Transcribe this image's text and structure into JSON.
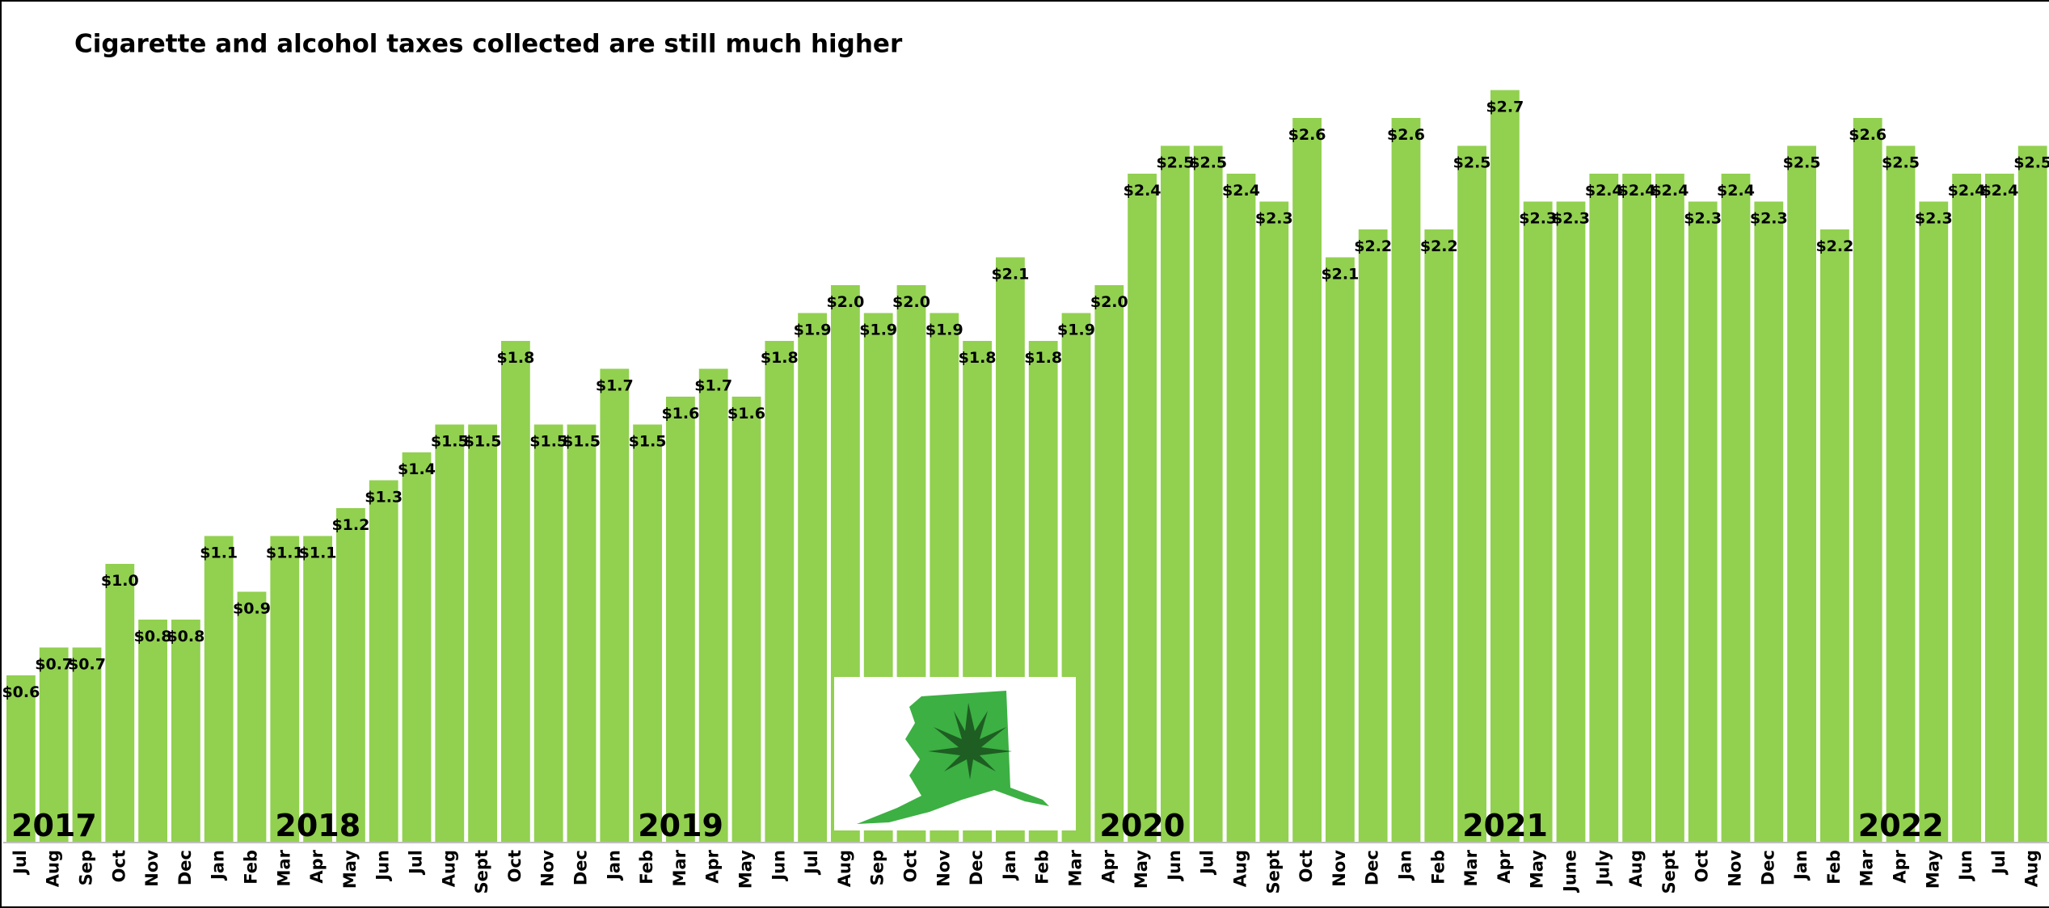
{
  "chart_data": {
    "type": "bar",
    "title": "Cigarette and alcohol taxes collected are still much higher",
    "color": "#92d050",
    "ylim": [
      0,
      3
    ],
    "categories": [
      "Jul",
      "Aug",
      "Sep",
      "Oct",
      "Nov",
      "Dec",
      "Jan",
      "Feb",
      "Mar",
      "Apr",
      "May",
      "Jun",
      "Jul",
      "Aug",
      "Sept",
      "Oct",
      "Nov",
      "Dec",
      "Jan",
      "Feb",
      "Mar",
      "Apr",
      "May",
      "Jun",
      "Jul",
      "Aug",
      "Sep",
      "Oct",
      "Nov",
      "Dec",
      "Jan",
      "Feb",
      "Mar",
      "Apr",
      "May",
      "Jun",
      "Jul",
      "Aug",
      "Sept",
      "Oct",
      "Nov",
      "Dec",
      "Jan",
      "Feb",
      "Mar",
      "Apr",
      "May",
      "June",
      "July",
      "Aug",
      "Sept",
      "Oct",
      "Nov",
      "Dec",
      "Jan",
      "Feb",
      "Mar",
      "Apr",
      "May",
      "Jun",
      "Jul",
      "Aug"
    ],
    "values": [
      0.6,
      0.7,
      0.7,
      1.0,
      0.8,
      0.8,
      1.1,
      0.9,
      1.1,
      1.1,
      1.2,
      1.3,
      1.4,
      1.5,
      1.5,
      1.8,
      1.5,
      1.5,
      1.7,
      1.5,
      1.6,
      1.7,
      1.6,
      1.8,
      1.9,
      2.0,
      1.9,
      2.0,
      1.9,
      1.8,
      2.1,
      1.8,
      1.9,
      2.0,
      2.4,
      2.5,
      2.5,
      2.4,
      2.3,
      2.6,
      2.1,
      2.2,
      2.6,
      2.2,
      2.5,
      2.7,
      2.3,
      2.3,
      2.4,
      2.4,
      2.4,
      2.3,
      2.4,
      2.3,
      2.5,
      2.2,
      2.6,
      2.5,
      2.3,
      2.4,
      2.4,
      2.5
    ],
    "value_labels": [
      "$0.6",
      "$0.7",
      "$0.7",
      "$1.0",
      "$0.8",
      "$0.8",
      "$1.1",
      "$0.9",
      "$1.1",
      "$1.1",
      "$1.2",
      "$1.3",
      "$1.4",
      "$1.5",
      "$1.5",
      "$1.8",
      "$1.5",
      "$1.5",
      "$1.7",
      "$1.5",
      "$1.6",
      "$1.7",
      "$1.6",
      "$1.8",
      "$1.9",
      "$2.0",
      "$1.9",
      "$2.0",
      "$1.9",
      "$1.8",
      "$2.1",
      "$1.8",
      "$1.9",
      "$2.0",
      "$2.4",
      "$2.5",
      "$2.5",
      "$2.4",
      "$2.3",
      "$2.6",
      "$2.1",
      "$2.2",
      "$2.6",
      "$2.2",
      "$2.5",
      "$2.7",
      "$2.3",
      "$2.3",
      "$2.4",
      "$2.4",
      "$2.4",
      "$2.3",
      "$2.4",
      "$2.3",
      "$2.5",
      "$2.2",
      "$2.6",
      "$2.5",
      "$2.3",
      "$2.4",
      "$2.4",
      "$2.5"
    ],
    "years": [
      "2017",
      "2018",
      "2019",
      "2020",
      "2021",
      "2022"
    ]
  }
}
